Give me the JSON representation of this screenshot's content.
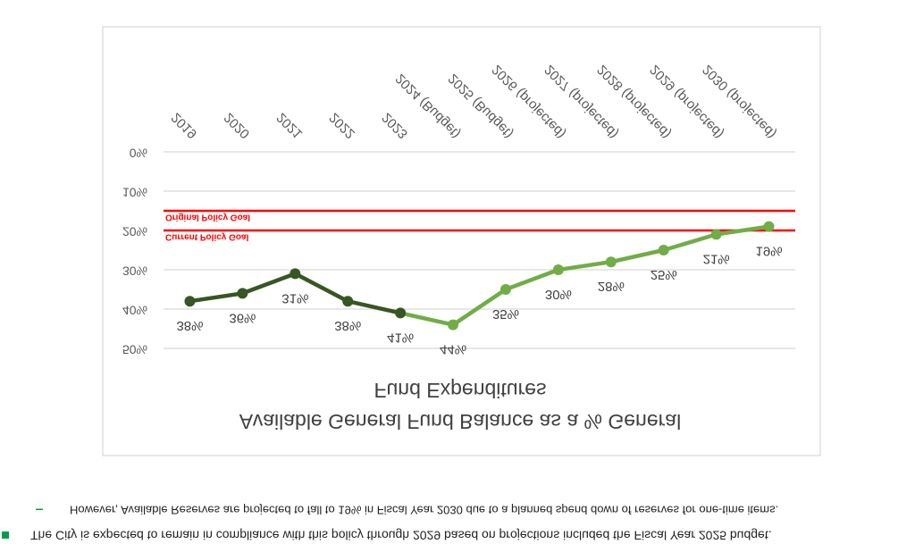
{
  "chart_data": {
    "type": "line",
    "title": [
      "Available General Fund Balance as a % General",
      "Fund Expenditures"
    ],
    "categories": [
      "2019",
      "2020",
      "2021",
      "2022",
      "2023",
      "2024 (Budget)",
      "2025 (Budget)",
      "2026 (projected)",
      "2027 (projected)",
      "2028 (projected)",
      "2029 (projected)",
      "2030 (projected)"
    ],
    "values": [
      38,
      36,
      31,
      38,
      41,
      44,
      35,
      30,
      28,
      25,
      21,
      19
    ],
    "value_labels": [
      "38%",
      "36%",
      "31%",
      "38%",
      "41%",
      "44%",
      "35%",
      "30%",
      "28%",
      "25%",
      "21%",
      "19%"
    ],
    "point_colors": [
      "#375623",
      "#375623",
      "#375623",
      "#375623",
      "#375623",
      "#70ad47",
      "#70ad47",
      "#70ad47",
      "#70ad47",
      "#70ad47",
      "#70ad47",
      "#70ad47"
    ],
    "ylim": [
      0,
      50
    ],
    "yticks": [
      {
        "value": 0,
        "label": "0%"
      },
      {
        "value": 10,
        "label": "10%"
      },
      {
        "value": 20,
        "label": "20%"
      },
      {
        "value": 30,
        "label": "30%"
      },
      {
        "value": 40,
        "label": "40%"
      },
      {
        "value": 50,
        "label": "50%"
      }
    ],
    "grid": true,
    "reference_lines": [
      {
        "label": "Original Policy Goal",
        "value": 15,
        "color": "#ff0000"
      },
      {
        "label": "Current Policy Goal",
        "value": 20,
        "color": "#ff0000"
      }
    ],
    "flipped_vertically": true
  },
  "notes": {
    "bullet": "The City is expected to remain in compliance with this policy through 2029 based on projections included the Fiscal Year 2025 budget.",
    "sub_bullet": "However, Available Reserves are projected to fall to 19% in Fiscal Year 2030 due to a planned spend down of reserves for one-time items."
  }
}
